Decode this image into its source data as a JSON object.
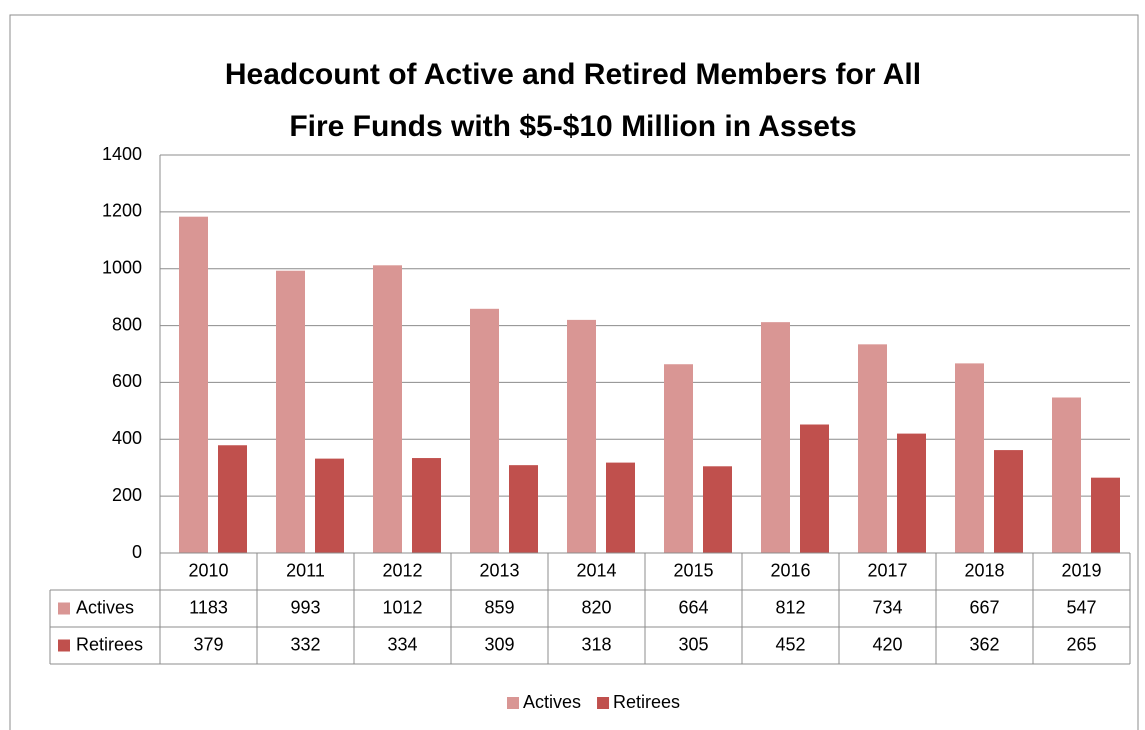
{
  "chart_data": {
    "type": "bar",
    "title": [
      "Headcount of Active and Retired Members for All",
      "Fire Funds with $5-$10 Million in Assets"
    ],
    "categories": [
      "2010",
      "2011",
      "2012",
      "2013",
      "2014",
      "2015",
      "2016",
      "2017",
      "2018",
      "2019"
    ],
    "series": [
      {
        "name": "Actives",
        "color": "#d99694",
        "values": [
          1183,
          993,
          1012,
          859,
          820,
          664,
          812,
          734,
          667,
          547
        ]
      },
      {
        "name": "Retirees",
        "color": "#c0504d",
        "values": [
          379,
          332,
          334,
          309,
          318,
          305,
          452,
          420,
          362,
          265
        ]
      }
    ],
    "ylim": [
      0,
      1400
    ],
    "yticks": [
      0,
      200,
      400,
      600,
      800,
      1000,
      1200,
      1400
    ],
    "grid": true,
    "legend": "bottom"
  }
}
